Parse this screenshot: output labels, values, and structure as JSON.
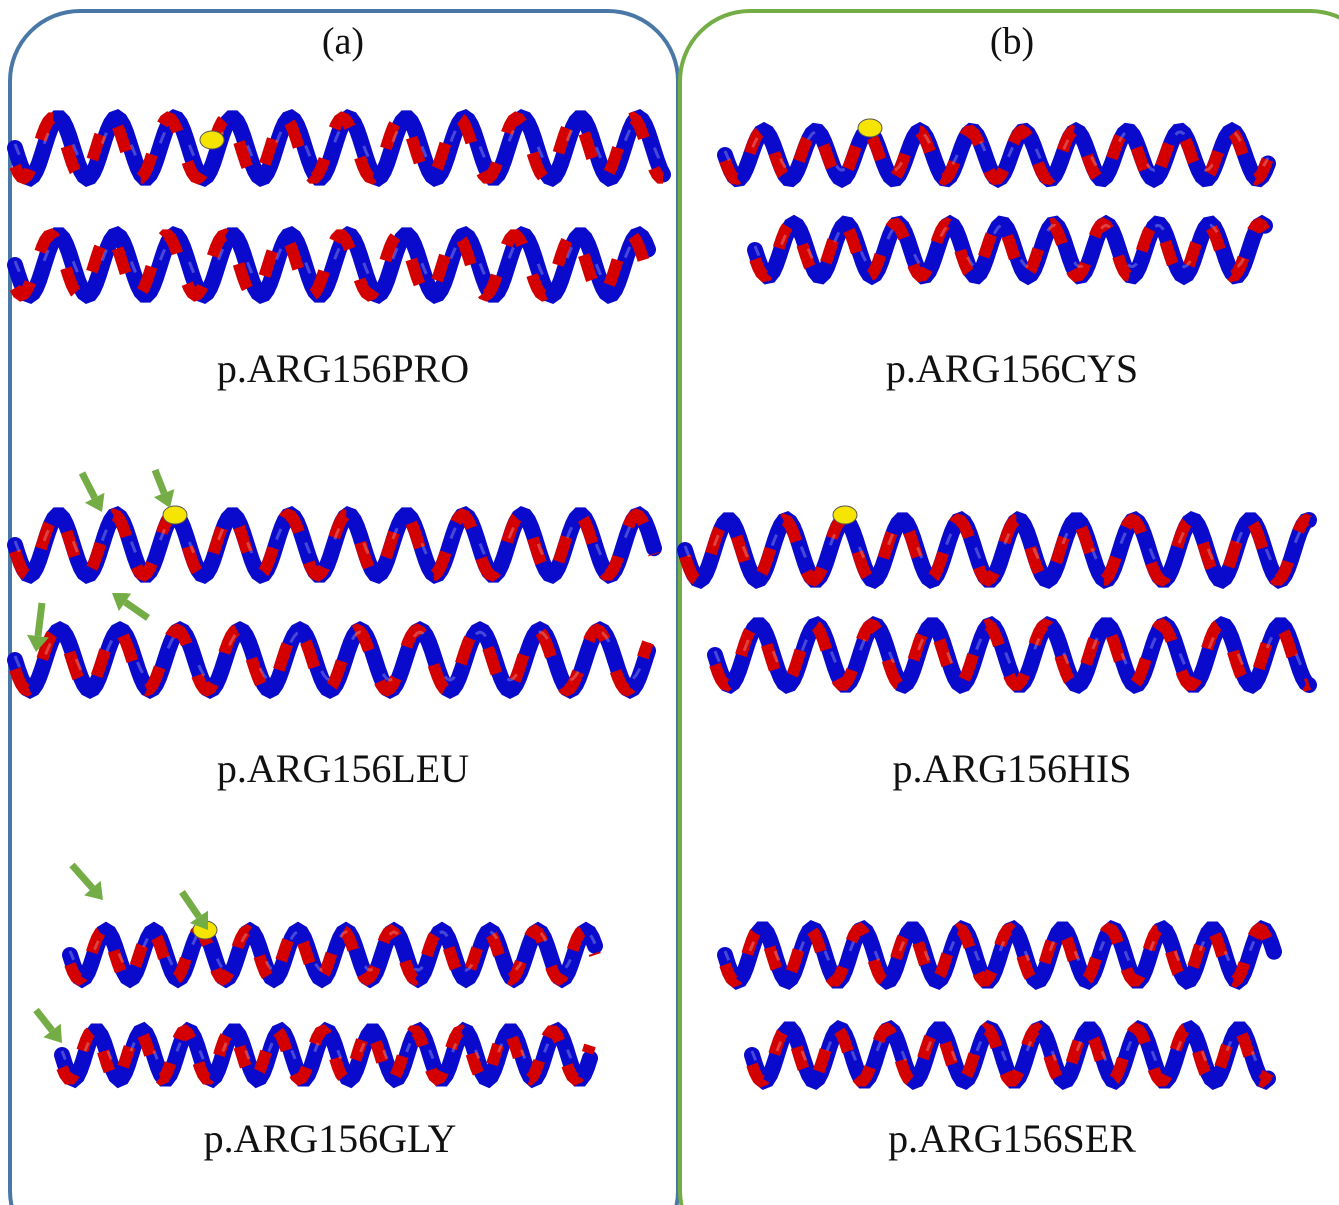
{
  "panels": [
    {
      "label": "(a)",
      "items": [
        {
          "label": "p.ARG156PRO"
        },
        {
          "label": "p.ARG156LEU"
        },
        {
          "label": "p.ARG156GLY"
        }
      ]
    },
    {
      "label": "(b)",
      "items": [
        {
          "label": "p.ARG156CYS"
        },
        {
          "label": "p.ARG156HIS"
        },
        {
          "label": "p.ARG156SER"
        }
      ]
    }
  ]
}
